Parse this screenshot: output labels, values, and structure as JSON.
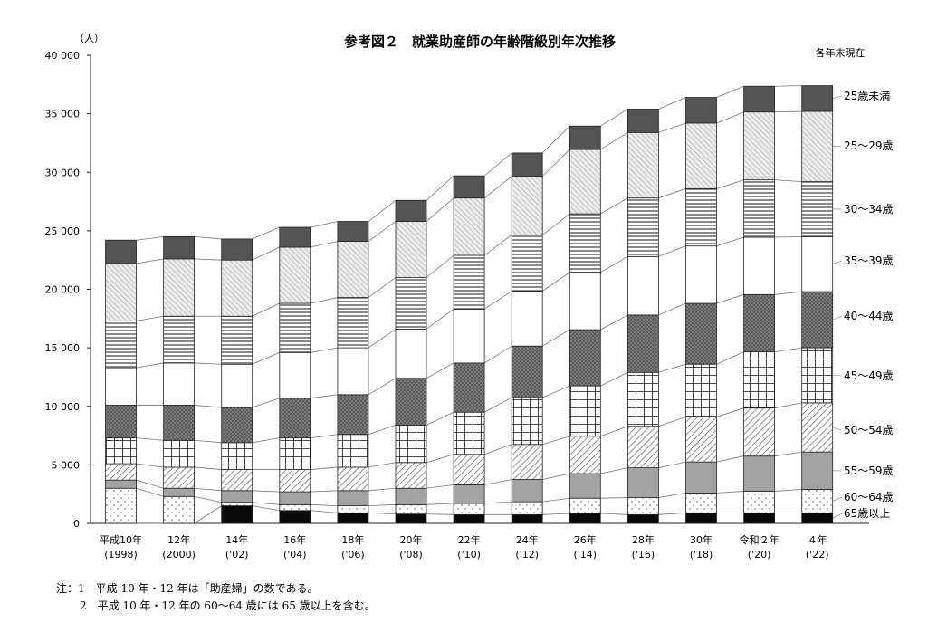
{
  "chart_data": {
    "type": "bar",
    "stacked": true,
    "title": "参考図２　就業助産師の年齢階級別年次推移",
    "subtitle": "各年末現在",
    "unit": "（人）",
    "ylim": [
      0,
      40000
    ],
    "yticks": [
      "0",
      "5 000",
      "10 000",
      "15 000",
      "20 000",
      "25 000",
      "30 000",
      "35 000",
      "40 000"
    ],
    "ytick_values": [
      0,
      5000,
      10000,
      15000,
      20000,
      25000,
      30000,
      35000,
      40000
    ],
    "categories": [
      {
        "line1": "平成10年",
        "line2": "(1998)"
      },
      {
        "line1": "12年",
        "line2": "(2000)"
      },
      {
        "line1": "14年",
        "line2": "('02)"
      },
      {
        "line1": "16年",
        "line2": "('04)"
      },
      {
        "line1": "18年",
        "line2": "('06)"
      },
      {
        "line1": "20年",
        "line2": "('08)"
      },
      {
        "line1": "22年",
        "line2": "('10)"
      },
      {
        "line1": "24年",
        "line2": "('12)"
      },
      {
        "line1": "26年",
        "line2": "('14)"
      },
      {
        "line1": "28年",
        "line2": "('16)"
      },
      {
        "line1": "30年",
        "line2": "('18)"
      },
      {
        "line1": "令和２年",
        "line2": "('20)"
      },
      {
        "line1": "４年",
        "line2": "('22)"
      }
    ],
    "series": [
      {
        "name": "65歳以上",
        "pattern": "solid-black",
        "values": [
          0,
          0,
          1500,
          1100,
          900,
          800,
          750,
          750,
          850,
          750,
          900,
          900,
          900
        ]
      },
      {
        "name": "60〜64歳",
        "pattern": "dots-white",
        "values": [
          3000,
          2300,
          300,
          500,
          600,
          800,
          950,
          1100,
          1300,
          1450,
          1700,
          1850,
          2000
        ]
      },
      {
        "name": "55〜59歳",
        "pattern": "solid-gray",
        "values": [
          700,
          700,
          1000,
          1100,
          1300,
          1400,
          1600,
          1900,
          2100,
          2550,
          2650,
          3000,
          3200
        ]
      },
      {
        "name": "50〜54歳",
        "pattern": "diagonal-stripes",
        "values": [
          1400,
          1800,
          1800,
          1900,
          2000,
          2200,
          2600,
          3000,
          3200,
          3550,
          3850,
          4100,
          4200
        ]
      },
      {
        "name": "45〜49歳",
        "pattern": "grid",
        "values": [
          2200,
          2300,
          2300,
          2700,
          2800,
          3200,
          3600,
          4000,
          4300,
          4600,
          4500,
          4800,
          4700
        ]
      },
      {
        "name": "40〜44歳",
        "pattern": "dark-dots",
        "values": [
          2800,
          3000,
          3000,
          3400,
          3400,
          4000,
          4200,
          4400,
          4800,
          4900,
          5200,
          4900,
          4800
        ]
      },
      {
        "name": "35〜39歳",
        "pattern": "white",
        "values": [
          3200,
          3600,
          3700,
          3900,
          4000,
          4200,
          4600,
          4700,
          4900,
          5000,
          4900,
          4900,
          4700
        ]
      },
      {
        "name": "30〜34歳",
        "pattern": "horizontal-stripes",
        "values": [
          4000,
          4000,
          4100,
          4200,
          4300,
          4400,
          4600,
          4800,
          5000,
          5000,
          4900,
          4900,
          4700
        ]
      },
      {
        "name": "25〜29歳",
        "pattern": "fine-diagonal",
        "values": [
          4900,
          4900,
          4800,
          4800,
          4800,
          4800,
          4900,
          5000,
          5500,
          5600,
          5600,
          5800,
          6000
        ]
      },
      {
        "name": "25歳未満",
        "pattern": "dark-gray",
        "values": [
          2000,
          1900,
          1800,
          1700,
          1700,
          1800,
          1900,
          2000,
          2000,
          2000,
          2200,
          2200,
          2200
        ]
      }
    ],
    "legend_placement": "right"
  },
  "notes": [
    "注：1　平成 10 年・12 年は「助産婦」の数である。",
    "2　平成 10 年・12 年の 60〜64 歳には 65 歳以上を含む。"
  ]
}
